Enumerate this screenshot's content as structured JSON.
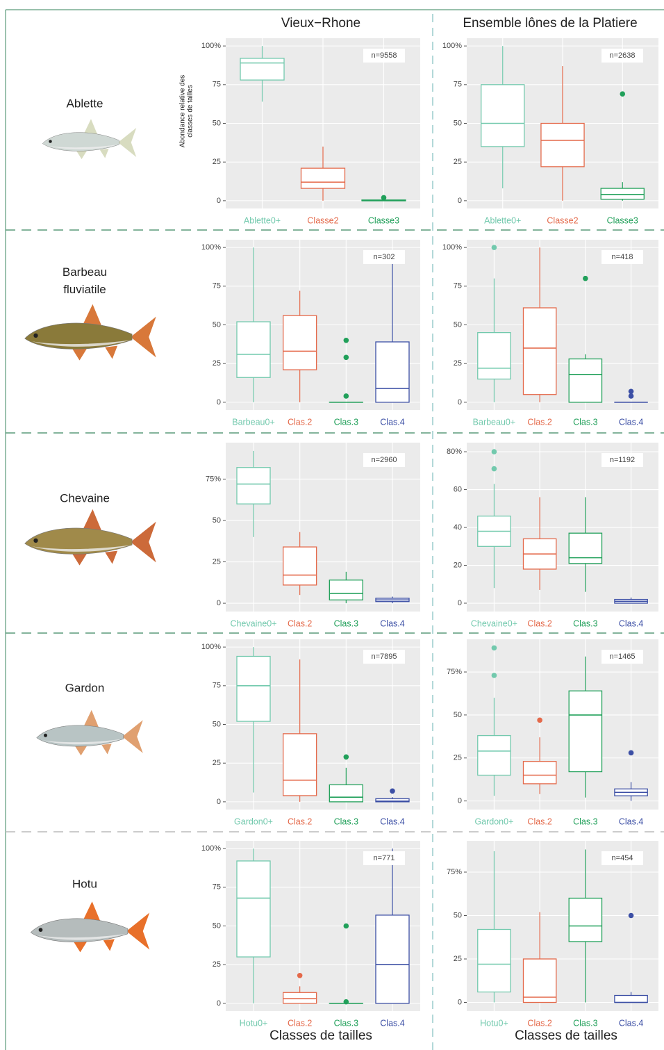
{
  "figure": {
    "column_titles": [
      "Vieux−Rhone",
      "Ensemble lônes de la Platiere"
    ],
    "species": [
      [
        "Ablette"
      ],
      [
        "Barbeau",
        "fluviatile"
      ],
      [
        "Chevaine"
      ],
      [
        "Gardon"
      ],
      [
        "Hotu"
      ]
    ],
    "x_title": "Classes de tailles"
  },
  "chart_data": [
    {
      "type": "box",
      "annotation": "n=9558",
      "ylabel": [
        "Abondance relative des",
        "classes de tailles"
      ],
      "categories": [
        "Ablette0+",
        "Classe2",
        "Classe3"
      ],
      "ylim": [
        -5,
        105
      ],
      "yticks": [
        0,
        25,
        50,
        75,
        {
          "value": 100,
          "label": "100%"
        }
      ],
      "grid": true,
      "boxes": [
        {
          "color": "#72c9ad",
          "whislo": 64,
          "q1": 78,
          "median": 89,
          "q3": 92,
          "whishi": 100,
          "fliers": []
        },
        {
          "color": "#e4694a",
          "whislo": 0,
          "q1": 8,
          "median": 12,
          "q3": 21,
          "whishi": 35,
          "fliers": []
        },
        {
          "color": "#21a05a",
          "whislo": 0,
          "q1": 0,
          "median": 0,
          "q3": 0.5,
          "whishi": 0.5,
          "fliers": [
            2
          ]
        }
      ]
    },
    {
      "type": "box",
      "annotation": "n=2638",
      "categories": [
        "Ablette0+",
        "Classe2",
        "Classe3"
      ],
      "ylim": [
        -5,
        105
      ],
      "yticks": [
        0,
        25,
        50,
        75,
        {
          "value": 100,
          "label": "100%"
        }
      ],
      "grid": true,
      "boxes": [
        {
          "color": "#72c9ad",
          "whislo": 8,
          "q1": 35,
          "median": 50,
          "q3": 75,
          "whishi": 100,
          "fliers": []
        },
        {
          "color": "#e4694a",
          "whislo": 0,
          "q1": 22,
          "median": 39,
          "q3": 50,
          "whishi": 87,
          "fliers": []
        },
        {
          "color": "#21a05a",
          "whislo": 0,
          "q1": 1,
          "median": 4,
          "q3": 8,
          "whishi": 12,
          "fliers": [
            69
          ]
        }
      ]
    },
    {
      "type": "box",
      "annotation": "n=302",
      "categories": [
        "Barbeau0+",
        "Clas.2",
        "Clas.3",
        "Clas.4"
      ],
      "ylim": [
        -5,
        105
      ],
      "yticks": [
        0,
        25,
        50,
        75,
        {
          "value": 100,
          "label": "100%"
        }
      ],
      "grid": true,
      "boxes": [
        {
          "color": "#72c9ad",
          "whislo": 0,
          "q1": 16,
          "median": 31,
          "q3": 52,
          "whishi": 100,
          "fliers": []
        },
        {
          "color": "#e4694a",
          "whislo": 0,
          "q1": 21,
          "median": 33,
          "q3": 56,
          "whishi": 72,
          "fliers": []
        },
        {
          "color": "#21a05a",
          "whislo": 0,
          "q1": 0,
          "median": 0,
          "q3": 0,
          "whishi": 0,
          "fliers": [
            40,
            29,
            4
          ]
        },
        {
          "color": "#3c4fa5",
          "whislo": 0,
          "q1": 0,
          "median": 9,
          "q3": 39,
          "whishi": 96,
          "fliers": []
        }
      ]
    },
    {
      "type": "box",
      "annotation": "n=418",
      "categories": [
        "Barbeau0+",
        "Clas.2",
        "Clas.3",
        "Clas.4"
      ],
      "ylim": [
        -5,
        105
      ],
      "yticks": [
        0,
        25,
        50,
        75,
        {
          "value": 100,
          "label": "100%"
        }
      ],
      "grid": true,
      "boxes": [
        {
          "color": "#72c9ad",
          "whislo": 0,
          "q1": 15,
          "median": 22,
          "q3": 45,
          "whishi": 80,
          "fliers": [
            100
          ]
        },
        {
          "color": "#e4694a",
          "whislo": 0,
          "q1": 5,
          "median": 35,
          "q3": 61,
          "whishi": 100,
          "fliers": []
        },
        {
          "color": "#21a05a",
          "whislo": 0,
          "q1": 0,
          "median": 18,
          "q3": 28,
          "whishi": 31,
          "fliers": [
            80
          ]
        },
        {
          "color": "#3c4fa5",
          "whislo": 0,
          "q1": 0,
          "median": 0,
          "q3": 0,
          "whishi": 0,
          "fliers": [
            7,
            4
          ]
        }
      ]
    },
    {
      "type": "box",
      "annotation": "n=2960",
      "categories": [
        "Chevaine0+",
        "Clas.2",
        "Clas.3",
        "Clas.4"
      ],
      "ylim": [
        -5,
        97
      ],
      "yticks": [
        0,
        25,
        50,
        {
          "value": 75,
          "label": "75%"
        }
      ],
      "grid": true,
      "boxes": [
        {
          "color": "#72c9ad",
          "whislo": 40,
          "q1": 60,
          "median": 72,
          "q3": 82,
          "whishi": 92,
          "fliers": []
        },
        {
          "color": "#e4694a",
          "whislo": 5,
          "q1": 11,
          "median": 17,
          "q3": 34,
          "whishi": 43,
          "fliers": []
        },
        {
          "color": "#21a05a",
          "whislo": 0,
          "q1": 2,
          "median": 6,
          "q3": 14,
          "whishi": 19,
          "fliers": []
        },
        {
          "color": "#3c4fa5",
          "whislo": 0,
          "q1": 1,
          "median": 2,
          "q3": 3,
          "whishi": 4,
          "fliers": []
        }
      ]
    },
    {
      "type": "box",
      "annotation": "n=1192",
      "categories": [
        "Chevaine0+",
        "Clas.2",
        "Clas.3",
        "Clas.4"
      ],
      "ylim": [
        -4.4,
        84.8
      ],
      "yticks": [
        0,
        20,
        40,
        60,
        {
          "value": 80,
          "label": "80%"
        }
      ],
      "grid": true,
      "boxes": [
        {
          "color": "#72c9ad",
          "whislo": 8,
          "q1": 30,
          "median": 38,
          "q3": 46,
          "whishi": 63,
          "fliers": [
            80,
            71
          ]
        },
        {
          "color": "#e4694a",
          "whislo": 7,
          "q1": 18,
          "median": 26,
          "q3": 34,
          "whishi": 56,
          "fliers": []
        },
        {
          "color": "#21a05a",
          "whislo": 6,
          "q1": 21,
          "median": 24,
          "q3": 37,
          "whishi": 56,
          "fliers": []
        },
        {
          "color": "#3c4fa5",
          "whislo": 0,
          "q1": 0,
          "median": 1,
          "q3": 2,
          "whishi": 3,
          "fliers": []
        }
      ]
    },
    {
      "type": "box",
      "annotation": "n=7895",
      "categories": [
        "Gardon0+",
        "Clas.2",
        "Clas.3",
        "Clas.4"
      ],
      "ylim": [
        -5,
        105
      ],
      "yticks": [
        0,
        25,
        50,
        75,
        {
          "value": 100,
          "label": "100%"
        }
      ],
      "grid": true,
      "boxes": [
        {
          "color": "#72c9ad",
          "whislo": 6,
          "q1": 52,
          "median": 75,
          "q3": 94,
          "whishi": 100,
          "fliers": []
        },
        {
          "color": "#e4694a",
          "whislo": 0,
          "q1": 4,
          "median": 14,
          "q3": 44,
          "whishi": 92,
          "fliers": []
        },
        {
          "color": "#21a05a",
          "whislo": 0,
          "q1": 0,
          "median": 3,
          "q3": 11,
          "whishi": 22,
          "fliers": [
            29
          ]
        },
        {
          "color": "#3c4fa5",
          "whislo": 0,
          "q1": 0,
          "median": 0.5,
          "q3": 2,
          "whishi": 3,
          "fliers": [
            7
          ]
        }
      ]
    },
    {
      "type": "box",
      "annotation": "n=1465",
      "categories": [
        "Gardon0+",
        "Clas.2",
        "Clas.3",
        "Clas.4"
      ],
      "ylim": [
        -5,
        94
      ],
      "yticks": [
        0,
        25,
        50,
        {
          "value": 75,
          "label": "75%"
        }
      ],
      "grid": true,
      "boxes": [
        {
          "color": "#72c9ad",
          "whislo": 3,
          "q1": 15,
          "median": 29,
          "q3": 38,
          "whishi": 60,
          "fliers": [
            89,
            73
          ]
        },
        {
          "color": "#e4694a",
          "whislo": 4,
          "q1": 10,
          "median": 15,
          "q3": 23,
          "whishi": 37,
          "fliers": [
            47
          ]
        },
        {
          "color": "#21a05a",
          "whislo": 2,
          "q1": 17,
          "median": 50,
          "q3": 64,
          "whishi": 84,
          "fliers": []
        },
        {
          "color": "#3c4fa5",
          "whislo": 0,
          "q1": 3,
          "median": 5,
          "q3": 7,
          "whishi": 11,
          "fliers": [
            28
          ]
        }
      ]
    },
    {
      "type": "box",
      "annotation": "n=771",
      "categories": [
        "Hotu0+",
        "Clas.2",
        "Clas.3",
        "Clas.4"
      ],
      "ylim": [
        -5,
        105
      ],
      "yticks": [
        0,
        25,
        50,
        75,
        {
          "value": 100,
          "label": "100%"
        }
      ],
      "grid": true,
      "boxes": [
        {
          "color": "#72c9ad",
          "whislo": 0,
          "q1": 30,
          "median": 68,
          "q3": 92,
          "whishi": 100,
          "fliers": []
        },
        {
          "color": "#e4694a",
          "whislo": 0,
          "q1": 0,
          "median": 3,
          "q3": 7,
          "whishi": 11,
          "fliers": [
            18
          ]
        },
        {
          "color": "#21a05a",
          "whislo": 0,
          "q1": 0,
          "median": 0,
          "q3": 0,
          "whishi": 0,
          "fliers": [
            50,
            1
          ]
        },
        {
          "color": "#3c4fa5",
          "whislo": 0,
          "q1": 0,
          "median": 25,
          "q3": 57,
          "whishi": 100,
          "fliers": []
        }
      ]
    },
    {
      "type": "box",
      "annotation": "n=454",
      "categories": [
        "Hotu0+",
        "Clas.2",
        "Clas.3",
        "Clas.4"
      ],
      "ylim": [
        -5,
        93
      ],
      "yticks": [
        0,
        25,
        50,
        {
          "value": 75,
          "label": "75%"
        }
      ],
      "grid": true,
      "boxes": [
        {
          "color": "#72c9ad",
          "whislo": 0,
          "q1": 6,
          "median": 22,
          "q3": 42,
          "whishi": 87,
          "fliers": []
        },
        {
          "color": "#e4694a",
          "whislo": 0,
          "q1": 0,
          "median": 3,
          "q3": 25,
          "whishi": 52,
          "fliers": []
        },
        {
          "color": "#21a05a",
          "whislo": 0,
          "q1": 35,
          "median": 44,
          "q3": 60,
          "whishi": 88,
          "fliers": []
        },
        {
          "color": "#3c4fa5",
          "whislo": 0,
          "q1": 0,
          "median": 0,
          "q3": 4,
          "whishi": 6,
          "fliers": [
            50
          ]
        }
      ]
    }
  ]
}
